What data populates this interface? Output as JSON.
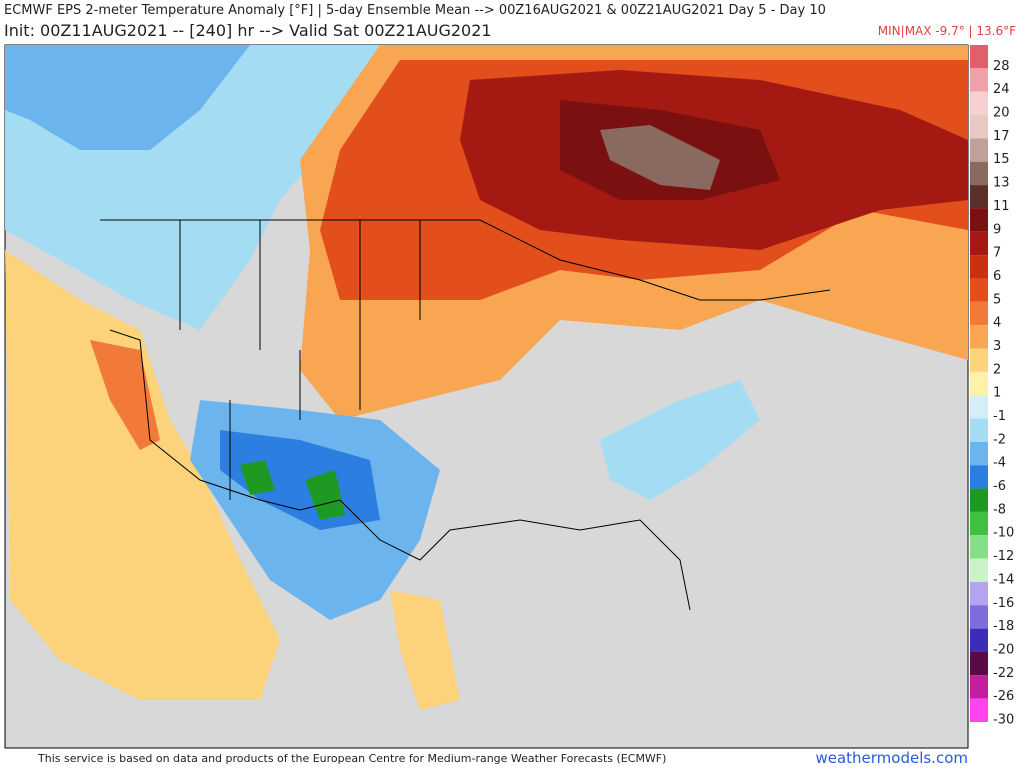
{
  "header": {
    "title": "ECMWF EPS 2-meter Temperature Anomaly [°F] | 5-day Ensemble Mean --> 00Z16AUG2021 & 00Z21AUG2021   Day 5 - Day 10",
    "subtitle": "Init: 00Z11AUG2021 -- [240] hr --> Valid Sat 00Z21AUG2021",
    "minmax": "MIN|MAX -9.7° | 13.6°F"
  },
  "legend": {
    "entries": [
      {
        "label": "28",
        "color": "#e0606a"
      },
      {
        "label": "24",
        "color": "#f0a0a8"
      },
      {
        "label": "20",
        "color": "#f8d0d4"
      },
      {
        "label": "17",
        "color": "#e8c8c0"
      },
      {
        "label": "15",
        "color": "#c0a098"
      },
      {
        "label": "13",
        "color": "#8a6a60"
      },
      {
        "label": "11",
        "color": "#5a3028"
      },
      {
        "label": "9",
        "color": "#7a1010"
      },
      {
        "label": "7",
        "color": "#a41a12"
      },
      {
        "label": "6",
        "color": "#c83210"
      },
      {
        "label": "5",
        "color": "#e24e1c"
      },
      {
        "label": "4",
        "color": "#f27a38"
      },
      {
        "label": "3",
        "color": "#f8a652"
      },
      {
        "label": "2",
        "color": "#fcd27a"
      },
      {
        "label": "1",
        "color": "#fff2a8"
      },
      {
        "label": "-1",
        "color": "#d4eef8"
      },
      {
        "label": "-2",
        "color": "#a4dcf4"
      },
      {
        "label": "-4",
        "color": "#6cb4ee"
      },
      {
        "label": "-6",
        "color": "#2c7ee0"
      },
      {
        "label": "-8",
        "color": "#1e9a22"
      },
      {
        "label": "-10",
        "color": "#40c040"
      },
      {
        "label": "-12",
        "color": "#84e084"
      },
      {
        "label": "-14",
        "color": "#c8f4c8"
      },
      {
        "label": "-16",
        "color": "#b4a4f0"
      },
      {
        "label": "-18",
        "color": "#7c6cdc"
      },
      {
        "label": "-20",
        "color": "#3c2cb8"
      },
      {
        "label": "-22",
        "color": "#5a0a44"
      },
      {
        "label": "-26",
        "color": "#c41ea0"
      },
      {
        "label": "-30",
        "color": "#ff44ee"
      }
    ]
  },
  "footer": {
    "note": "This service is based on data and products of the European Centre for Medium-range Weather Forecasts (ECMWF)",
    "brand": "weathermodels.com"
  }
}
